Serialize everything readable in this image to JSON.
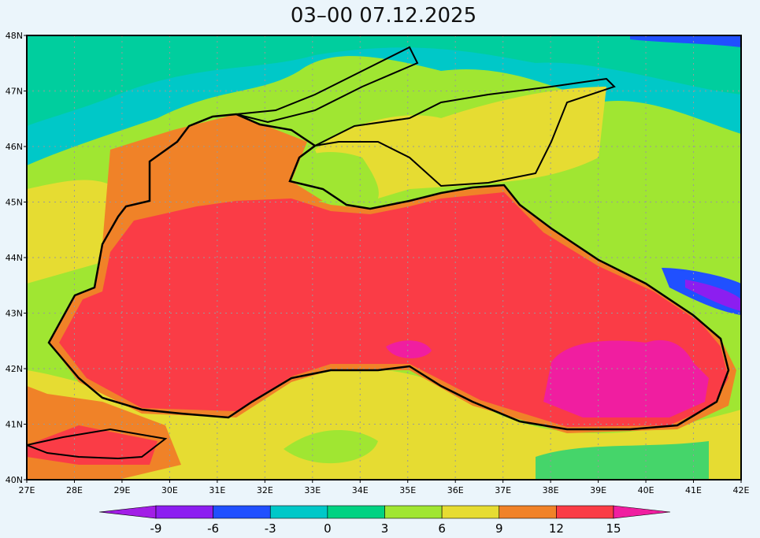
{
  "title": "03–00    07.12.2025",
  "map": {
    "lat_ticks": [
      {
        "value": 40,
        "label": "40N"
      },
      {
        "value": 41,
        "label": "41N"
      },
      {
        "value": 42,
        "label": "42N"
      },
      {
        "value": 43,
        "label": "43N"
      },
      {
        "value": 44,
        "label": "44N"
      },
      {
        "value": 45,
        "label": "45N"
      },
      {
        "value": 46,
        "label": "46N"
      },
      {
        "value": 47,
        "label": "47N"
      },
      {
        "value": 48,
        "label": "48N"
      }
    ],
    "lon_ticks": [
      {
        "value": 27,
        "label": "27E"
      },
      {
        "value": 28,
        "label": "28E"
      },
      {
        "value": 29,
        "label": "29E"
      },
      {
        "value": 30,
        "label": "30E"
      },
      {
        "value": 31,
        "label": "31E"
      },
      {
        "value": 32,
        "label": "32E"
      },
      {
        "value": 33,
        "label": "33E"
      },
      {
        "value": 34,
        "label": "34E"
      },
      {
        "value": 35,
        "label": "35E"
      },
      {
        "value": 36,
        "label": "36E"
      },
      {
        "value": 37,
        "label": "37E"
      },
      {
        "value": 38,
        "label": "38E"
      },
      {
        "value": 39,
        "label": "39E"
      },
      {
        "value": 40,
        "label": "40E"
      },
      {
        "value": 41,
        "label": "41E"
      },
      {
        "value": 42,
        "label": "42E"
      }
    ]
  },
  "colorbar": {
    "ticks": [
      -9,
      -6,
      -3,
      0,
      3,
      6,
      9,
      12,
      15
    ],
    "colors": [
      "#a21ee6",
      "#8c1ef0",
      "#2050ff",
      "#00c8c8",
      "#00d282",
      "#a0e632",
      "#e6dc32",
      "#f08228",
      "#fa3c46",
      "#f01ea0"
    ]
  }
}
